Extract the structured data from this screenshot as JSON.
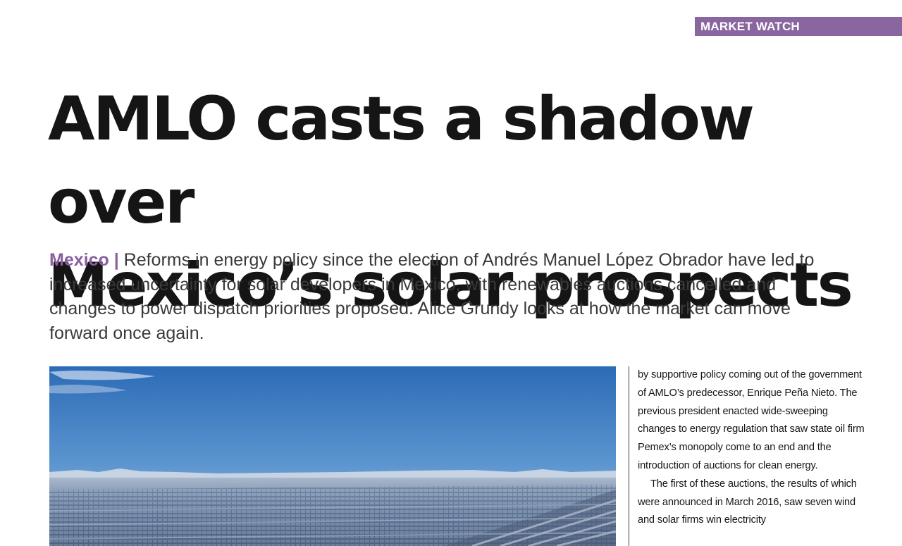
{
  "section_tag": "MARKET WATCH",
  "headline": {
    "line1": "AMLO casts a shadow over",
    "line2": "Mexico’s solar prospects"
  },
  "standfirst": {
    "kicker": "Mexico |",
    "text": " Reforms in energy policy since the election of Andrés Manuel López Obrador have led to increased uncertainty for solar developers in Mexico, with renewables auctions cancelled and changes to power dispatch priorities proposed. Alice Grundy looks at how the market can move forward once again."
  },
  "photo": {
    "subject": "solar-farm-photo"
  },
  "body_column": {
    "paragraphs": [
      "by supportive policy coming out of the government of AMLO’s predecessor, Enrique Peña Nieto. The previous president enacted wide-sweeping changes to energy regulation that saw state oil firm Pemex’s monopoly come to an end and the introduction of auctions for clean energy.",
      "The first of these auctions, the results of which were announced in March 2016, saw seven wind and solar firms win electricity"
    ]
  },
  "colors": {
    "accent": "#8a66a0",
    "kicker": "#8a5ea0",
    "headline": "#151515",
    "standfirst": "#3a3a3a"
  }
}
